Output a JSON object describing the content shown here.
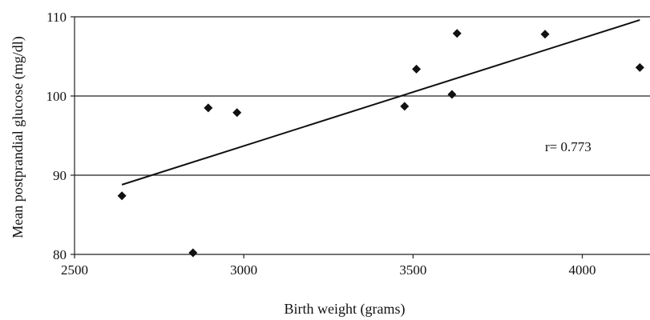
{
  "chart_data": {
    "type": "scatter",
    "title": "",
    "xlabel": "Birth weight (grams)",
    "ylabel": "Mean postprandial glucose (mg/dl)",
    "xlim": [
      2500,
      4200
    ],
    "ylim": [
      80,
      110
    ],
    "x_ticks": [
      2500,
      3000,
      3500,
      4000
    ],
    "y_ticks": [
      80,
      90,
      100,
      110
    ],
    "grid": "horizontal",
    "series": [
      {
        "points": [
          {
            "x": 2640,
            "y": 87.4
          },
          {
            "x": 2850,
            "y": 80.2
          },
          {
            "x": 2895,
            "y": 98.5
          },
          {
            "x": 2980,
            "y": 97.9
          },
          {
            "x": 3475,
            "y": 98.7
          },
          {
            "x": 3510,
            "y": 103.4
          },
          {
            "x": 3615,
            "y": 100.2
          },
          {
            "x": 3630,
            "y": 107.9
          },
          {
            "x": 3890,
            "y": 107.8
          },
          {
            "x": 4170,
            "y": 103.6
          }
        ]
      }
    ],
    "trendline": {
      "x1": 2640,
      "y1": 88.8,
      "x2": 4170,
      "y2": 109.6
    },
    "annotation": "r= 0.773"
  }
}
